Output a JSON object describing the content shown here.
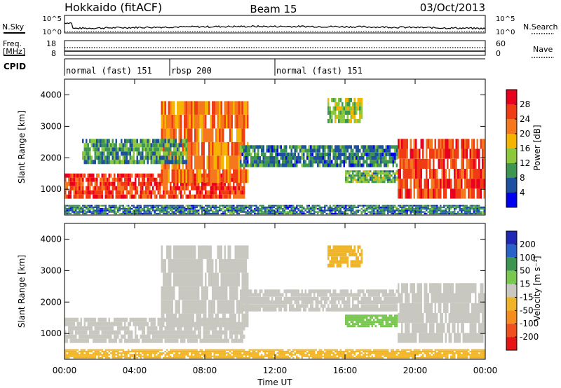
{
  "header": {
    "station": "Hokkaido (fitACF)",
    "beam": "Beam 15",
    "date": "03/Oct/2013"
  },
  "top_panels": {
    "nsky_label": "N.Sky",
    "nsky_ticks": [
      "10^5",
      "10^0"
    ],
    "nsky_right_ticks": [
      "10^5",
      "10^0"
    ],
    "nsearch_label": "N.Search",
    "freq_label": "Freq.",
    "freq_unit": "[MHz]",
    "freq_ticks": [
      "18",
      "8"
    ],
    "nave_ticks": [
      "60",
      "0"
    ],
    "nave_label": "Nave",
    "cpid_label": "CPID",
    "cpid_segments": [
      {
        "label": "normal (fast) 151",
        "start": 0.0,
        "end": 6.0
      },
      {
        "label": "rbsp 200",
        "start": 6.0,
        "end": 12.0
      },
      {
        "label": "normal (fast) 151",
        "start": 12.0,
        "end": 24.0
      }
    ]
  },
  "power_colorbar": {
    "label": "Power [dB]",
    "ticks": [
      "28",
      "24",
      "20",
      "16",
      "12",
      "8",
      "4"
    ],
    "colors": [
      "#e8001e",
      "#f03c14",
      "#f5781e",
      "#f5b400",
      "#8cc83c",
      "#3c9650",
      "#1e50a0",
      "#0000f0"
    ]
  },
  "velocity_colorbar": {
    "label": "Velocity [m s⁻¹]",
    "ticks": [
      "200",
      "100",
      "50",
      "15",
      "-15",
      "-50",
      "-100",
      "-200"
    ],
    "colors": [
      "#1e28b4",
      "#2864c8",
      "#3c9650",
      "#78c850",
      "#c8c8c0",
      "#f0b428",
      "#f58c1e",
      "#f0501e",
      "#e61414"
    ]
  },
  "axes": {
    "ylabel": "Slant Range [km]",
    "yticks": [
      "4000",
      "3000",
      "2000",
      "1000"
    ],
    "xticks": [
      "00:00",
      "04:00",
      "08:00",
      "12:00",
      "16:00",
      "20:00",
      "00:00"
    ],
    "xlabel": "Time UT"
  },
  "chart_data": [
    {
      "type": "heatmap",
      "title": "",
      "xlabel": "",
      "ylabel": "Slant Range [km]",
      "x_unit": "hours UT",
      "xlim": [
        0,
        24
      ],
      "ylim": [
        180,
        4500
      ],
      "value_label": "Power [dB]",
      "regions": [
        {
          "t_start": 0.0,
          "t_end": 10.3,
          "r_low": 700,
          "r_high": 1500,
          "value": 26
        },
        {
          "t_start": 5.5,
          "t_end": 10.5,
          "r_low": 1200,
          "r_high": 3800,
          "value": 22
        },
        {
          "t_start": 1.0,
          "t_end": 7.0,
          "r_low": 1800,
          "r_high": 2600,
          "value": 10
        },
        {
          "t_start": 10.0,
          "t_end": 19.0,
          "r_low": 1700,
          "r_high": 2400,
          "value": 8
        },
        {
          "t_start": 15.0,
          "t_end": 17.0,
          "r_low": 3100,
          "r_high": 3900,
          "value": 14
        },
        {
          "t_start": 16.0,
          "t_end": 19.0,
          "r_low": 1200,
          "r_high": 1600,
          "value": 12
        },
        {
          "t_start": 19.0,
          "t_end": 24.0,
          "r_low": 700,
          "r_high": 2600,
          "value": 26
        },
        {
          "t_start": 0.0,
          "t_end": 24.0,
          "r_low": 200,
          "r_high": 500,
          "value": 8
        }
      ]
    },
    {
      "type": "heatmap",
      "title": "",
      "xlabel": "Time UT",
      "ylabel": "Slant Range [km]",
      "x_unit": "hours UT",
      "xlim": [
        0,
        24
      ],
      "ylim": [
        180,
        4500
      ],
      "value_label": "Velocity [m s⁻¹]",
      "regions": [
        {
          "t_start": 0.0,
          "t_end": 10.3,
          "r_low": 700,
          "r_high": 1500,
          "value": 0
        },
        {
          "t_start": 5.5,
          "t_end": 10.5,
          "r_low": 1200,
          "r_high": 3800,
          "value": 0
        },
        {
          "t_start": 10.0,
          "t_end": 19.0,
          "r_low": 1700,
          "r_high": 2400,
          "value": 0
        },
        {
          "t_start": 15.0,
          "t_end": 17.0,
          "r_low": 3100,
          "r_high": 3800,
          "value": -30
        },
        {
          "t_start": 16.0,
          "t_end": 19.0,
          "r_low": 1200,
          "r_high": 1600,
          "value": 40
        },
        {
          "t_start": 19.0,
          "t_end": 24.0,
          "r_low": 700,
          "r_high": 2600,
          "value": 0
        },
        {
          "t_start": 0.0,
          "t_end": 24.0,
          "r_low": 200,
          "r_high": 500,
          "value": -40
        }
      ]
    }
  ]
}
